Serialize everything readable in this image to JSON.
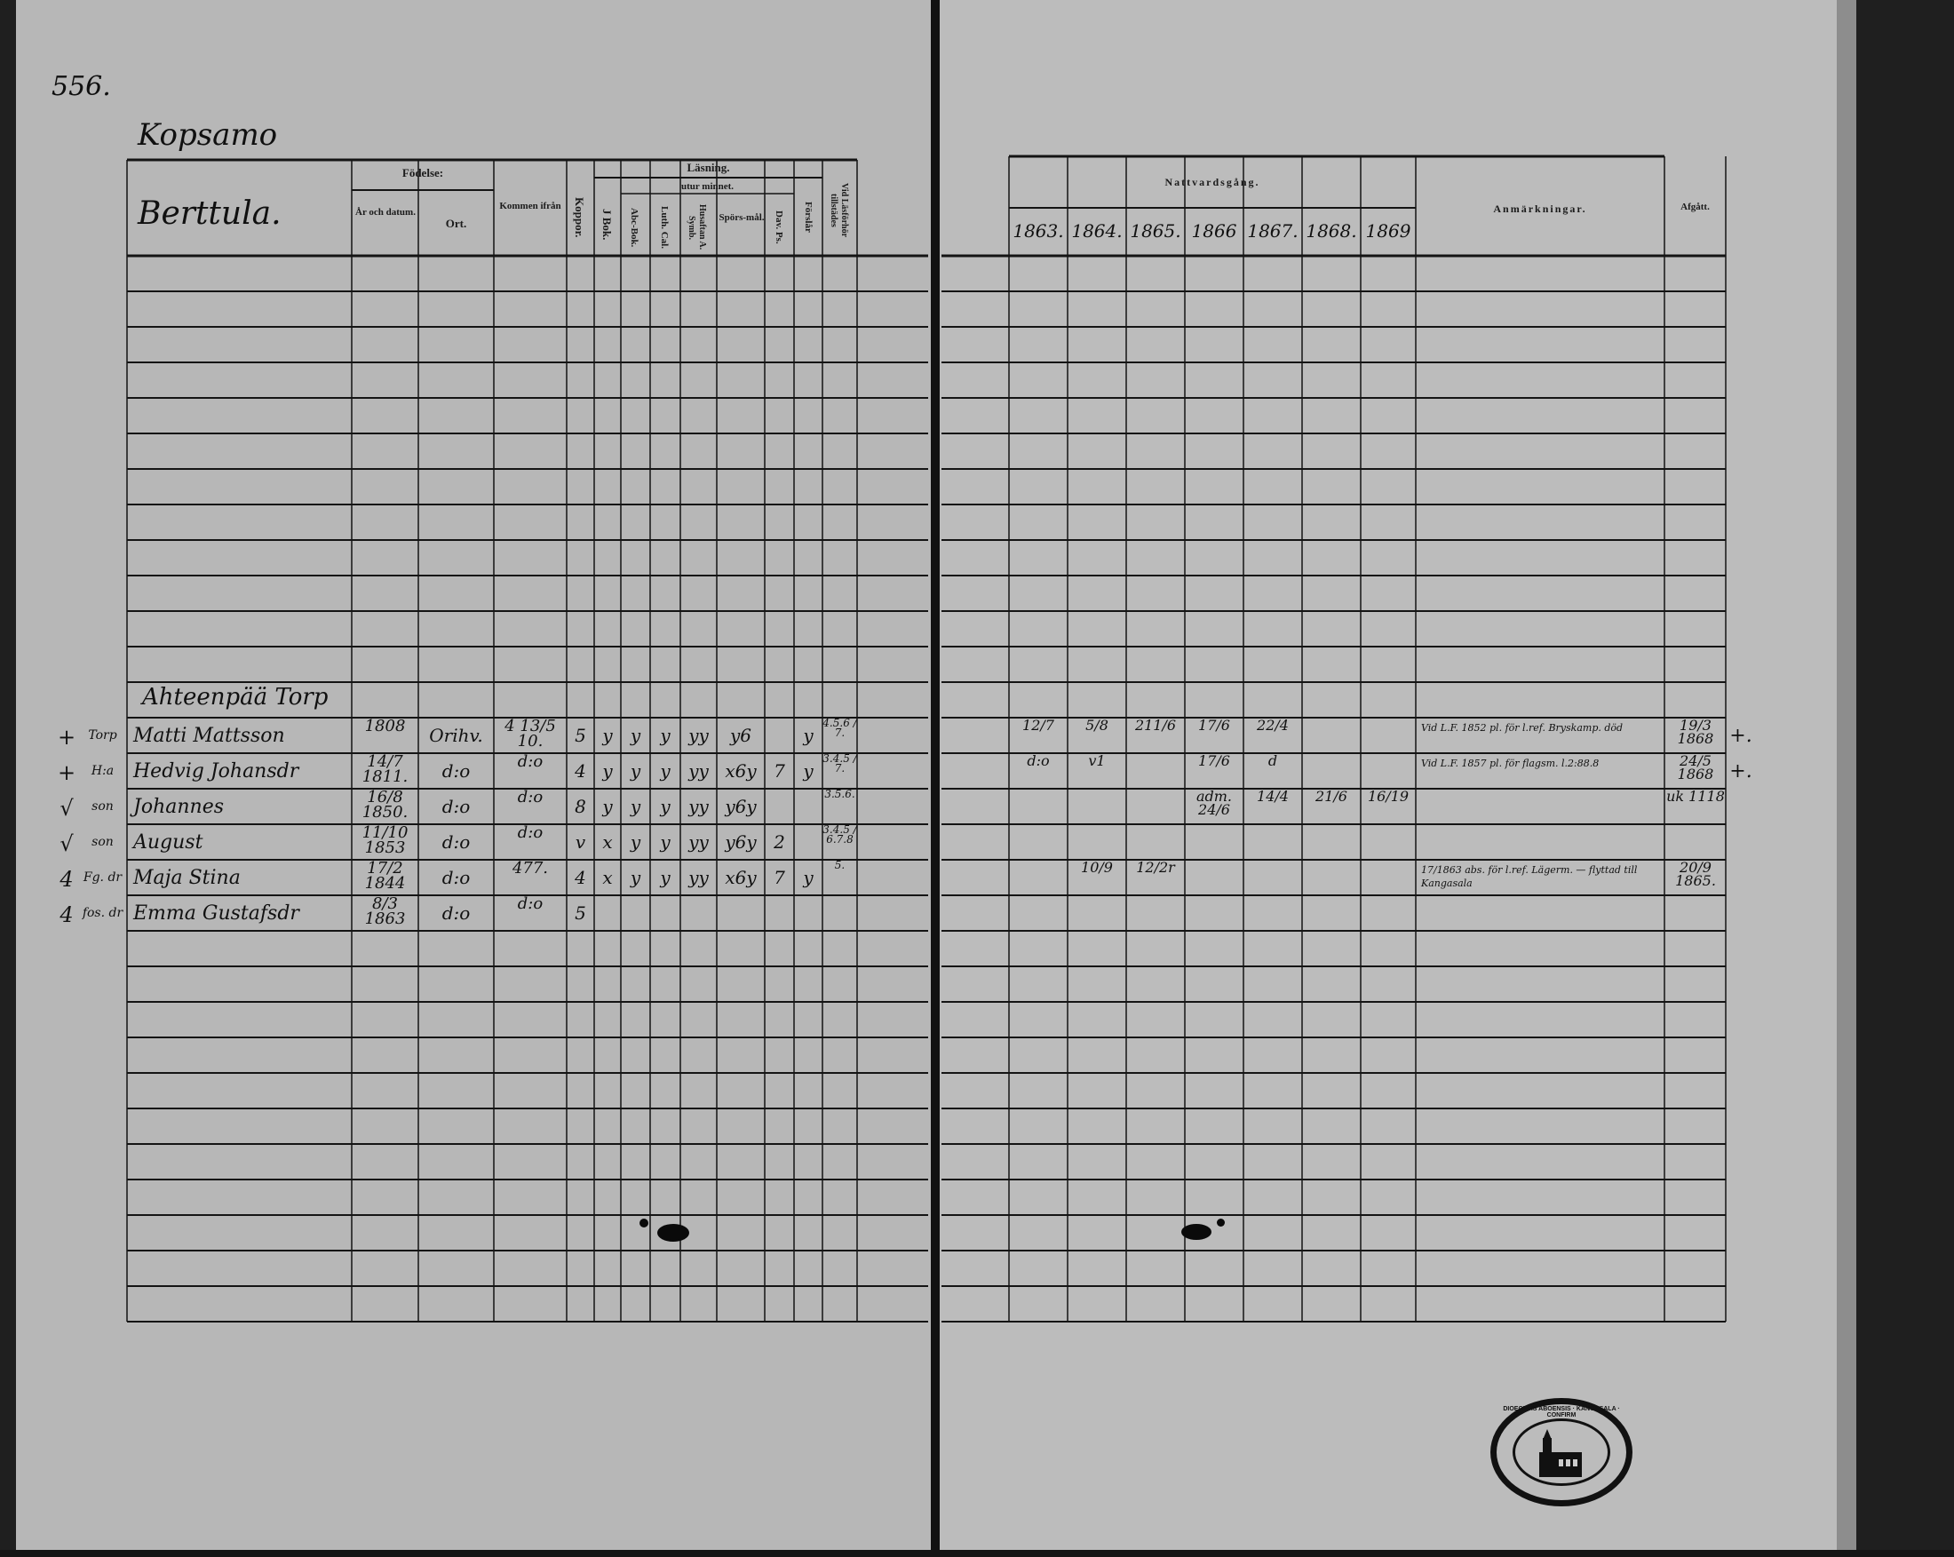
{
  "left_page": {
    "page_number": "556.",
    "village": "Kopsamo",
    "farm": "Berttula.",
    "headers": {
      "fodelse": "Födelse:",
      "ar": "År och datum.",
      "ort": "Ort.",
      "kommen": "Kommen ifrån",
      "koppor": "Koppor.",
      "lasning": "Läsning.",
      "utur_minnet": "utur minnet.",
      "j_bok": "J Bok.",
      "abc": "Abc-Bok.",
      "luth": "Luth. Cal.",
      "husaftan": "Husaftan A. Symb.",
      "sporsmal": "Spörs-mål.",
      "dav": "Dav. Ps.",
      "forslar": "Förslår",
      "vid": "Vid Läsförhör tillstädes"
    },
    "household_heading": "Ahteenpää Torp",
    "entries": [
      {
        "mark": "+",
        "role": "Torp",
        "name": "Matti Mattsson",
        "born": "1808",
        "place": "Orihv.",
        "from": "4 13/5 10.",
        "koppor": "5",
        "j_bok": "y",
        "abc": "y",
        "luth": "y",
        "husaftan": "yy",
        "sporsmal": "y6",
        "dav": "",
        "forslar": "y",
        "vid": "4.5.6 / 7."
      },
      {
        "mark": "+",
        "role": "H:a",
        "name": "Hedvig Johansdr",
        "born": "14/7 1811.",
        "place": "d:o",
        "from": "d:o",
        "koppor": "4",
        "j_bok": "y",
        "abc": "y",
        "luth": "y",
        "husaftan": "yy",
        "sporsmal": "x6y",
        "dav": "7",
        "forslar": "y",
        "vid": "3.4.5 / 7."
      },
      {
        "mark": "√",
        "role": "son",
        "name": "Johannes",
        "born": "16/8 1850.",
        "place": "d:o",
        "from": "d:o",
        "koppor": "8",
        "j_bok": "y",
        "abc": "y",
        "luth": "y",
        "husaftan": "yy",
        "sporsmal": "y6y",
        "dav": "",
        "forslar": "",
        "vid": "3.5.6."
      },
      {
        "mark": "√",
        "role": "son",
        "name": "August",
        "born": "11/10 1853",
        "place": "d:o",
        "from": "d:o",
        "koppor": "v",
        "j_bok": "x",
        "abc": "y",
        "luth": "y",
        "husaftan": "yy",
        "sporsmal": "y6y",
        "dav": "2",
        "forslar": "",
        "vid": "3.4.5 / 6.7.8"
      },
      {
        "mark": "4",
        "role": "Fg. dr",
        "name": "Maja Stina",
        "born": "17/2 1844",
        "place": "d:o",
        "from": "477.",
        "koppor": "4",
        "j_bok": "x",
        "abc": "y",
        "luth": "y",
        "husaftan": "yy",
        "sporsmal": "x6y",
        "dav": "7",
        "forslar": "y",
        "vid": "5."
      },
      {
        "mark": "4",
        "role": "fos. dr",
        "name": "Emma Gustafsdr",
        "born": "8/3 1863",
        "place": "d:o",
        "from": "d:o",
        "koppor": "5",
        "j_bok": "",
        "abc": "",
        "luth": "",
        "husaftan": "",
        "sporsmal": "",
        "dav": "",
        "forslar": "",
        "vid": ""
      }
    ]
  },
  "right_page": {
    "headers": {
      "nattvardsgang": "Nattvardsgång.",
      "years": [
        "1863.",
        "1864.",
        "1865.",
        "1866",
        "1867.",
        "1868.",
        "1869"
      ],
      "anmarkningar": "Anmärkningar.",
      "afgatt": "Afgått."
    },
    "entries": [
      {
        "communion": [
          "12/7",
          "5/8",
          "211/6",
          "17/6",
          "22/4",
          "",
          ""
        ],
        "remark": "Vid L.F. 1852 pl. för l.ref. Bryskamp.   död",
        "departed": "19/3 1868",
        "mark": "+."
      },
      {
        "communion": [
          "d:o",
          "v1",
          "",
          "17/6",
          "d",
          "",
          ""
        ],
        "remark": "Vid L.F. 1857 pl. för flagsm. l.2:88.8",
        "departed": "24/5 1868",
        "mark": "+."
      },
      {
        "communion": [
          "",
          "",
          "",
          "adm. 24/6",
          "14/4",
          "21/6",
          "16/19"
        ],
        "remark": "",
        "departed": "uk 1118",
        "mark": ""
      },
      {
        "communion": [
          "",
          "",
          "",
          "",
          "",
          "",
          ""
        ],
        "remark": "",
        "departed": "",
        "mark": ""
      },
      {
        "communion": [
          "",
          "10/9",
          "12/2r",
          "",
          "",
          "",
          ""
        ],
        "remark": "17/1863 abs. för l.ref. Lägerm. — flyttad till Kangasala",
        "departed": "20/9 1865.",
        "mark": ""
      },
      {
        "communion": [
          "",
          "",
          "",
          "",
          "",
          "",
          ""
        ],
        "remark": "",
        "departed": "",
        "mark": ""
      }
    ]
  },
  "stamp": {
    "text": "DIOECESIS ABOENSIS · KANGASALA · CONFIRM"
  },
  "colors": {
    "paper_left": "#b7b7b7",
    "paper_right": "#bcbcbc",
    "ink": "#111111",
    "background": "#1f1f1f"
  }
}
